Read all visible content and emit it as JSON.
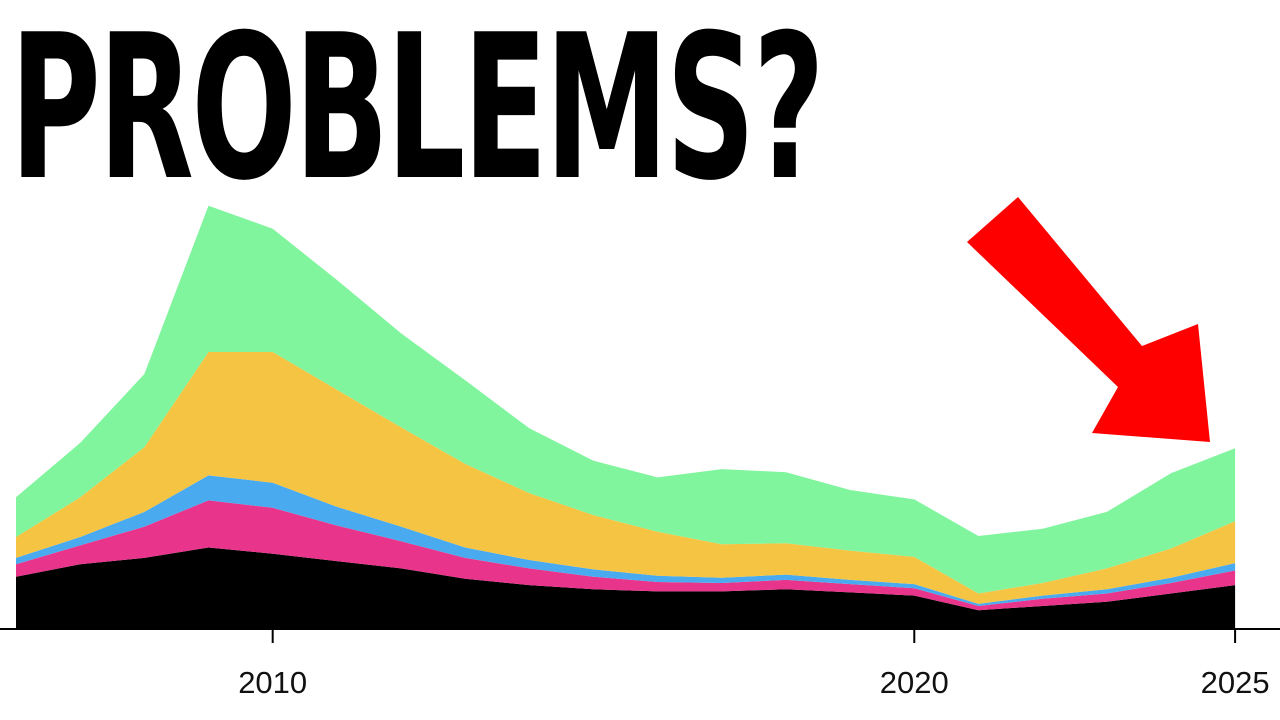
{
  "headline": "PROBLEMS?",
  "colors": {
    "background": "#ffffff",
    "arrow": "#ff0000",
    "axis": "#000000"
  },
  "annotation": {
    "type": "arrow",
    "color": "#ff0000",
    "points_to": "2025"
  },
  "chart_data": {
    "type": "area",
    "stacked": true,
    "title": "",
    "xlabel": "",
    "ylabel": "",
    "x": [
      2006,
      2007,
      2008,
      2009,
      2010,
      2011,
      2012,
      2013,
      2014,
      2015,
      2016,
      2017,
      2018,
      2019,
      2020,
      2021,
      2022,
      2023,
      2024,
      2025
    ],
    "xlim": [
      2005.75,
      2025.7
    ],
    "ylim": [
      0,
      420
    ],
    "x_ticks": [
      "2010",
      "2020",
      "2025"
    ],
    "grid": false,
    "legend": "none",
    "series": [
      {
        "color": "#000000",
        "values": [
          50,
          62,
          68,
          78,
          72,
          65,
          58,
          48,
          42,
          38,
          36,
          36,
          38,
          35,
          32,
          18,
          22,
          26,
          34,
          42
        ]
      },
      {
        "color": "#e8348a",
        "values": [
          12,
          18,
          30,
          45,
          44,
          34,
          26,
          20,
          16,
          12,
          9,
          8,
          9,
          8,
          7,
          4,
          7,
          8,
          10,
          14
        ]
      },
      {
        "color": "#4aaaf0",
        "values": [
          6,
          8,
          14,
          24,
          24,
          18,
          14,
          10,
          8,
          7,
          6,
          5,
          5,
          4,
          4,
          2,
          3,
          4,
          5,
          7
        ]
      },
      {
        "color": "#f5c443",
        "values": [
          20,
          38,
          62,
          118,
          125,
          112,
          95,
          80,
          64,
          52,
          42,
          32,
          30,
          28,
          26,
          10,
          12,
          20,
          28,
          40
        ]
      },
      {
        "color": "#80f59e",
        "values": [
          38,
          52,
          70,
          140,
          118,
          105,
          90,
          80,
          62,
          52,
          52,
          72,
          68,
          58,
          55,
          55,
          52,
          54,
          72,
          70
        ]
      }
    ]
  }
}
